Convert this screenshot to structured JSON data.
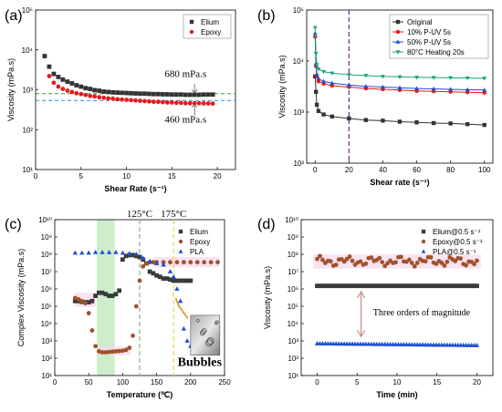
{
  "chart_data": [
    {
      "panel": "(a)",
      "type": "scatter",
      "xlabel": "Shear Rate (s⁻¹)",
      "ylabel": "Viscosity (mPa.s)",
      "xlim": [
        0,
        22
      ],
      "ylim_log": [
        1,
        5
      ],
      "xticks": [
        0,
        5,
        10,
        15,
        20
      ],
      "yticks": [
        "10¹",
        "10²",
        "10³",
        "10⁴",
        "10⁵"
      ],
      "legend": "top-right",
      "series": [
        {
          "name": "Elium",
          "color": "#333333",
          "marker": "square",
          "x": [
            1,
            1.5,
            2,
            2.5,
            3,
            3.5,
            4,
            4.5,
            5,
            5.5,
            6,
            6.5,
            7,
            7.5,
            8,
            8.5,
            9,
            9.5,
            10,
            10.5,
            11,
            11.5,
            12,
            12.5,
            13,
            13.5,
            14,
            14.5,
            15,
            15.5,
            16,
            16.5,
            17,
            17.5,
            18,
            18.5,
            19,
            19.5
          ],
          "y": [
            7000,
            3800,
            2500,
            2100,
            1800,
            1600,
            1450,
            1300,
            1200,
            1100,
            1050,
            980,
            950,
            900,
            880,
            860,
            850,
            840,
            830,
            820,
            810,
            800,
            800,
            790,
            780,
            780,
            770,
            770,
            760,
            760,
            760,
            750,
            750,
            750,
            750,
            760,
            760,
            760
          ]
        },
        {
          "name": "Epoxy",
          "color": "#e31a1c",
          "marker": "circle",
          "x": [
            1.5,
            2,
            2.5,
            3,
            3.5,
            4,
            4.5,
            5,
            5.5,
            6,
            6.5,
            7,
            7.5,
            8,
            8.5,
            9,
            9.5,
            10,
            10.5,
            11,
            11.5,
            12,
            12.5,
            13,
            13.5,
            14,
            14.5,
            15,
            15.5,
            16,
            16.5,
            17,
            17.5,
            18,
            18.5,
            19,
            19.5
          ],
          "y": [
            2200,
            1500,
            1200,
            1050,
            950,
            880,
            820,
            780,
            740,
            700,
            680,
            650,
            630,
            610,
            600,
            580,
            570,
            560,
            550,
            540,
            530,
            520,
            510,
            500,
            500,
            490,
            480,
            480,
            470,
            470,
            460,
            460,
            460,
            460,
            455,
            455,
            450
          ]
        }
      ],
      "reference_lines": [
        {
          "value": 800,
          "color": "#3a9a3a"
        },
        {
          "value": 540,
          "color": "#2b8fd0"
        }
      ],
      "annotations": [
        "680 mPa.s",
        "460 mPa.s"
      ]
    },
    {
      "panel": "(b)",
      "type": "line",
      "xlabel": "Shear rate (s⁻¹)",
      "ylabel": "Viscosity (mPa.s)",
      "xlim": [
        -5,
        105
      ],
      "ylim_log": [
        2,
        5
      ],
      "xticks": [
        0,
        20,
        40,
        60,
        80,
        100
      ],
      "yticks": [
        "10²",
        "10³",
        "10⁴",
        "10⁵"
      ],
      "legend": "top-right",
      "vertical_line": 20,
      "series": [
        {
          "name": "Original",
          "color": "#333333",
          "marker": "square",
          "x": [
            0,
            0.5,
            1,
            2,
            5,
            10,
            20,
            30,
            40,
            50,
            60,
            70,
            80,
            90,
            100
          ],
          "y": [
            5000,
            2500,
            1400,
            1050,
            900,
            820,
            750,
            700,
            680,
            650,
            630,
            610,
            600,
            580,
            560
          ]
        },
        {
          "name": "10% P-UV 5s",
          "color": "#e31a1c",
          "marker": "circle",
          "x": [
            0,
            0.5,
            1,
            2,
            5,
            10,
            20,
            30,
            40,
            50,
            60,
            70,
            80,
            90,
            100
          ],
          "y": [
            30000,
            8000,
            5000,
            4000,
            3600,
            3300,
            3100,
            2900,
            2800,
            2700,
            2600,
            2550,
            2500,
            2450,
            2400
          ]
        },
        {
          "name": "50% P-UV 5s",
          "color": "#1f4fd0",
          "marker": "triangle-up",
          "x": [
            0,
            0.5,
            1,
            2,
            5,
            10,
            20,
            30,
            40,
            50,
            60,
            70,
            80,
            90,
            100
          ],
          "y": [
            35000,
            9000,
            5500,
            4500,
            4000,
            3700,
            3400,
            3200,
            3100,
            3000,
            2900,
            2850,
            2800,
            2750,
            2700
          ]
        },
        {
          "name": "80°C Heating 20s",
          "color": "#1aa37a",
          "marker": "triangle-down",
          "x": [
            0,
            0.5,
            1,
            2,
            5,
            10,
            20,
            30,
            40,
            50,
            60,
            70,
            80,
            90,
            100
          ],
          "y": [
            45000,
            14000,
            8500,
            7000,
            6200,
            5800,
            5400,
            5200,
            5000,
            4900,
            4800,
            4750,
            4700,
            4650,
            4600
          ]
        }
      ]
    },
    {
      "panel": "(c)",
      "type": "scatter",
      "xlabel": "Temperature (℃)",
      "ylabel": "Complex Viscosity (mPa.s)",
      "xlim": [
        0,
        250
      ],
      "ylim_log": [
        1,
        10
      ],
      "xticks": [
        0,
        50,
        100,
        150,
        200,
        250
      ],
      "yticks": [
        "10¹",
        "10²",
        "10³",
        "10⁴",
        "10⁵",
        "10⁶",
        "10⁷",
        "10⁸",
        "10⁹",
        "10¹⁰"
      ],
      "legend": "top-right",
      "shaded_region": [
        62,
        88
      ],
      "vertical_lines": [
        {
          "value": 125,
          "label": "125°C"
        },
        {
          "value": 175,
          "label": "175°C"
        }
      ],
      "inset_label": "Bubbles",
      "series": [
        {
          "name": "Elium",
          "color": "#3a3a3a",
          "marker": "square",
          "x": [
            30,
            35,
            40,
            45,
            50,
            55,
            60,
            65,
            70,
            75,
            80,
            85,
            90,
            95,
            100,
            105,
            110,
            115,
            120,
            125,
            130,
            135,
            140,
            145,
            150,
            155,
            160,
            165,
            170,
            175,
            180,
            185,
            190,
            195,
            200
          ],
          "y": [
            200000.0,
            200000.0,
            180000.0,
            170000.0,
            170000.0,
            200000.0,
            400000.0,
            600000.0,
            600000.0,
            500000.0,
            400000.0,
            400000.0,
            500000.0,
            800000.0,
            50000000.0,
            80000000.0,
            90000000.0,
            90000000.0,
            80000000.0,
            70000000.0,
            50000000.0,
            30000000.0,
            10000000.0,
            8000000.0,
            6000000.0,
            5000000.0,
            4000000.0,
            4000000.0,
            3500000.0,
            3000000.0,
            3000000.0,
            3000000.0,
            3000000.0,
            3000000.0,
            3000000.0
          ]
        },
        {
          "name": "Epoxy",
          "color": "#a0522d",
          "marker": "circle",
          "x": [
            30,
            35,
            40,
            45,
            50,
            55,
            60,
            65,
            70,
            75,
            80,
            85,
            90,
            95,
            100,
            105,
            110,
            115,
            120,
            125,
            130,
            135,
            140,
            145,
            150,
            160,
            170,
            180,
            190,
            200,
            210,
            220,
            230,
            240
          ],
          "y": [
            300000.0,
            250000.0,
            200000.0,
            150000.0,
            40000.0,
            4000,
            500,
            250,
            220,
            220,
            230,
            240,
            250,
            260,
            270,
            300,
            400,
            2000,
            100000.0,
            3000000.0,
            20000000.0,
            30000000.0,
            35000000.0,
            35000000.0,
            35000000.0,
            35000000.0,
            35000000.0,
            35000000.0,
            35000000.0,
            35000000.0,
            35000000.0,
            35000000.0,
            35000000.0,
            35000000.0
          ]
        },
        {
          "name": "PLA",
          "color": "#1f4fd0",
          "marker": "triangle-up",
          "x": [
            30,
            40,
            50,
            60,
            70,
            80,
            90,
            100,
            110,
            120,
            130,
            140,
            150,
            160,
            170,
            175,
            180,
            185,
            190,
            195,
            200,
            210,
            220,
            230
          ],
          "y": [
            120000000.0,
            120000000.0,
            120000000.0,
            130000000.0,
            130000000.0,
            130000000.0,
            130000000.0,
            120000000.0,
            110000000.0,
            100000000.0,
            60000000.0,
            40000000.0,
            30000000.0,
            25000000.0,
            10000000.0,
            5000000.0,
            1000000.0,
            200000.0,
            5000,
            1000,
            500,
            400,
            300,
            250
          ]
        }
      ]
    },
    {
      "panel": "(d)",
      "type": "scatter",
      "xlabel": "Time (min)",
      "ylabel": "Viscosity (mPa.s)",
      "xlim": [
        -2,
        22
      ],
      "ylim_log": [
        1,
        10
      ],
      "xticks": [
        0,
        5,
        10,
        15,
        20
      ],
      "yticks": [
        "10¹",
        "10²",
        "10³",
        "10⁴",
        "10⁵",
        "10⁶",
        "10⁷",
        "10⁸",
        "10⁹",
        "10¹⁰"
      ],
      "legend": "top-right",
      "annotation": "Three orders of magnitude",
      "series": [
        {
          "name": "Elium@0.5 s⁻¹",
          "color": "#3a3a3a",
          "marker": "square",
          "x_range": [
            0,
            20
          ],
          "y_const": 1500000.0
        },
        {
          "name": "Epoxy@0.5 s⁻¹",
          "color": "#a0522d",
          "marker": "circle",
          "x_range": [
            0,
            20
          ],
          "y_range": [
            20000000.0,
            80000000.0
          ]
        },
        {
          "name": "PLA@0.5 s⁻¹",
          "color": "#1f4fd0",
          "marker": "triangle-up",
          "x_range": [
            0,
            20
          ],
          "y_range": [
            700,
            550
          ]
        }
      ]
    }
  ]
}
